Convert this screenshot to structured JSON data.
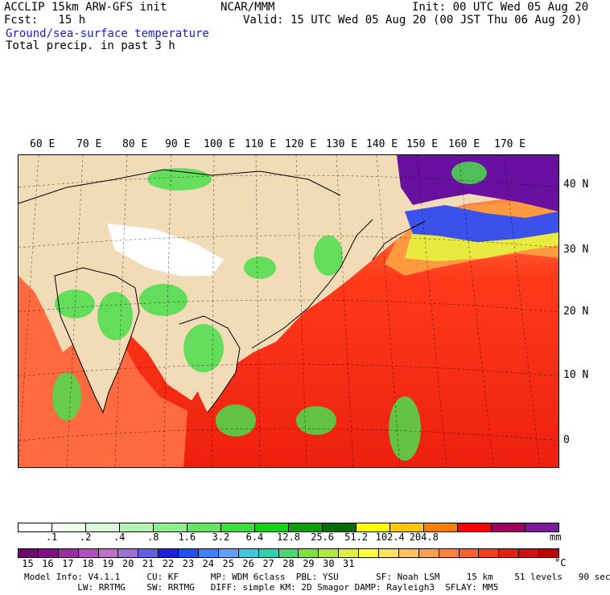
{
  "header": {
    "model": "ACCLIP 15km ARW-GFS init",
    "org": "NCAR/MMM",
    "init": "Init: 00 UTC Wed 05 Aug 20",
    "fcst": "Fcst:   15 h",
    "valid": "Valid: 15 UTC Wed 05 Aug 20 (00 JST Thu 06 Aug 20)",
    "field1": "Ground/sea-surface temperature",
    "field2": "Total precip. in past 3 h"
  },
  "map": {
    "lon_labels": [
      "60 E",
      "70 E",
      "80 E",
      "90 E",
      "100 E",
      "110 E",
      "120 E",
      "130 E",
      "140 E",
      "150 E",
      "160 E",
      "170 E"
    ],
    "lat_labels": [
      "40 N",
      "30 N",
      "20 N",
      "10 N",
      "0"
    ]
  },
  "precip_scale": {
    "labels": [
      ".1",
      ".2",
      ".4",
      ".8",
      "1.6",
      "3.2",
      "6.4",
      "12.8",
      "25.6",
      "51.2",
      "102.4",
      "204.8"
    ],
    "unit": "mm",
    "colors": [
      "#ffffff",
      "#f0fff0",
      "#d6fbd6",
      "#b4f5b4",
      "#8cee8c",
      "#64e664",
      "#3cde3c",
      "#14d214",
      "#0aa00a",
      "#006e00",
      "#ffff00",
      "#ffc800",
      "#ff7d00",
      "#ff0000",
      "#a00060",
      "#7a1aa0"
    ]
  },
  "temp_scale": {
    "labels": [
      "15",
      "16",
      "17",
      "18",
      "19",
      "20",
      "21",
      "22",
      "23",
      "24",
      "25",
      "26",
      "27",
      "28",
      "29",
      "30",
      "31"
    ],
    "unit": "°C",
    "colors": [
      "#6a0a6a",
      "#80108a",
      "#9a30a0",
      "#b050b8",
      "#c070c8",
      "#9a70d0",
      "#6060e0",
      "#2020e0",
      "#2050f0",
      "#4080ff",
      "#60a0ff",
      "#40c8e0",
      "#30d0b0",
      "#50d870",
      "#80e040",
      "#b0e840",
      "#e0f040",
      "#ffff40",
      "#ffe060",
      "#ffc060",
      "#ffa050",
      "#ff8040",
      "#ff6030",
      "#f04020",
      "#e02010",
      "#d01010",
      "#c00000"
    ]
  },
  "model_info": {
    "line1": "Model Info: V4.1.1     CU: KF      MP: WDM 6class  PBL: YSU       SF: Noah LSM     15 km    51 levels   90 sec",
    "line2": "          LW: RRTMG    SW: RRTMG   DIFF: simple KM: 2D Smagor DAMP: Rayleigh3  SFLAY: MM5"
  }
}
